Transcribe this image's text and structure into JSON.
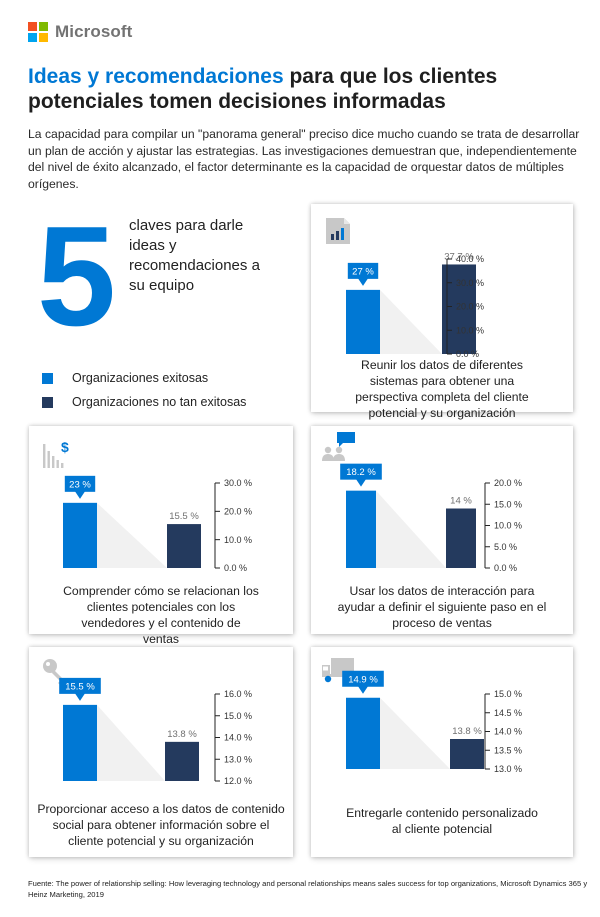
{
  "brand": {
    "name": "Microsoft",
    "logo_colors": [
      "#f25022",
      "#7fba00",
      "#00a4ef",
      "#ffb900"
    ]
  },
  "colors": {
    "accent": "#0078d4",
    "dark": "#243a5e"
  },
  "headline": {
    "accent": "Ideas y recomendaciones",
    "rest": " para que los clientes potenciales tomen decisiones informadas"
  },
  "intro": "La capacidad para compilar un \"panorama general\" preciso dice mucho cuando se trata de desarrollar un plan de acción y ajustar las estrategias. Las investigaciones demuestran que, independientemente del nivel de éxito alcanzado, el factor determinante es la capacidad de orquestar datos de múltiples orígenes.",
  "key_number": "5",
  "key_text": "claves para darle ideas y recomendaciones a su equipo",
  "legend": {
    "items": [
      {
        "label": "Organizaciones exitosas",
        "color": "#0078d4"
      },
      {
        "label": "Organizaciones no tan exitosas",
        "color": "#243a5e"
      }
    ]
  },
  "chart_data": [
    {
      "type": "bar",
      "icon": "bar-chart-icon",
      "categories": [
        "Organizaciones exitosas",
        "Organizaciones no tan exitosas"
      ],
      "values": [
        27,
        37.7
      ],
      "labels": [
        "27 %",
        "37.7 %"
      ],
      "ylim": [
        0,
        40
      ],
      "ticks": [
        "0.0 %",
        "10.0 %",
        "20.0 %",
        "30.0 %",
        "40.0 %"
      ],
      "title": "Reunir los datos de diferentes sistemas para obtener una perspectiva completa del cliente potencial y su organización"
    },
    {
      "type": "bar",
      "icon": "dollar-bars-icon",
      "categories": [
        "Organizaciones exitosas",
        "Organizaciones no tan exitosas"
      ],
      "values": [
        23,
        15.5
      ],
      "labels": [
        "23 %",
        "15.5 %"
      ],
      "ylim": [
        0,
        30
      ],
      "ticks": [
        "0.0 %",
        "10.0 %",
        "20.0 %",
        "30.0 %"
      ],
      "title": "Comprender cómo se relacionan los clientes potenciales con los vendedores y el contenido de ventas"
    },
    {
      "type": "bar",
      "icon": "people-chat-icon",
      "categories": [
        "Organizaciones exitosas",
        "Organizaciones no tan exitosas"
      ],
      "values": [
        18.2,
        14
      ],
      "labels": [
        "18.2 %",
        "14 %"
      ],
      "ylim": [
        0,
        20
      ],
      "ticks": [
        "0.0 %",
        "5.0 %",
        "10.0 %",
        "15.0 %",
        "20.0 %"
      ],
      "title": "Usar los datos de interacción para ayudar a definir el siguiente paso en el proceso de ventas"
    },
    {
      "type": "bar",
      "icon": "key-icon",
      "categories": [
        "Organizaciones exitosas",
        "Organizaciones no tan exitosas"
      ],
      "values": [
        15.5,
        13.8
      ],
      "labels": [
        "15.5 %",
        "13.8 %"
      ],
      "ylim": [
        12,
        16
      ],
      "ticks": [
        "12.0 %",
        "13.0 %",
        "14.0 %",
        "15.0 %",
        "16.0 %"
      ],
      "title": "Proporcionar acceso a los datos de contenido social para obtener información sobre el cliente potencial y su organización"
    },
    {
      "type": "bar",
      "icon": "truck-icon",
      "categories": [
        "Organizaciones exitosas",
        "Organizaciones no tan exitosas"
      ],
      "values": [
        14.9,
        13.8
      ],
      "labels": [
        "14.9 %",
        "13.8 %"
      ],
      "ylim": [
        13,
        15
      ],
      "ticks": [
        "13.0 %",
        "13.5 %",
        "14.0 %",
        "14.5 %",
        "15.0 %"
      ],
      "title": "Entregarle contenido personalizado al cliente potencial"
    }
  ],
  "footer": "Fuente: The power of relationship selling: How leveraging technology and personal relationships means sales success for top organizations, Microsoft Dynamics 365 y Heinz Marketing, 2019"
}
